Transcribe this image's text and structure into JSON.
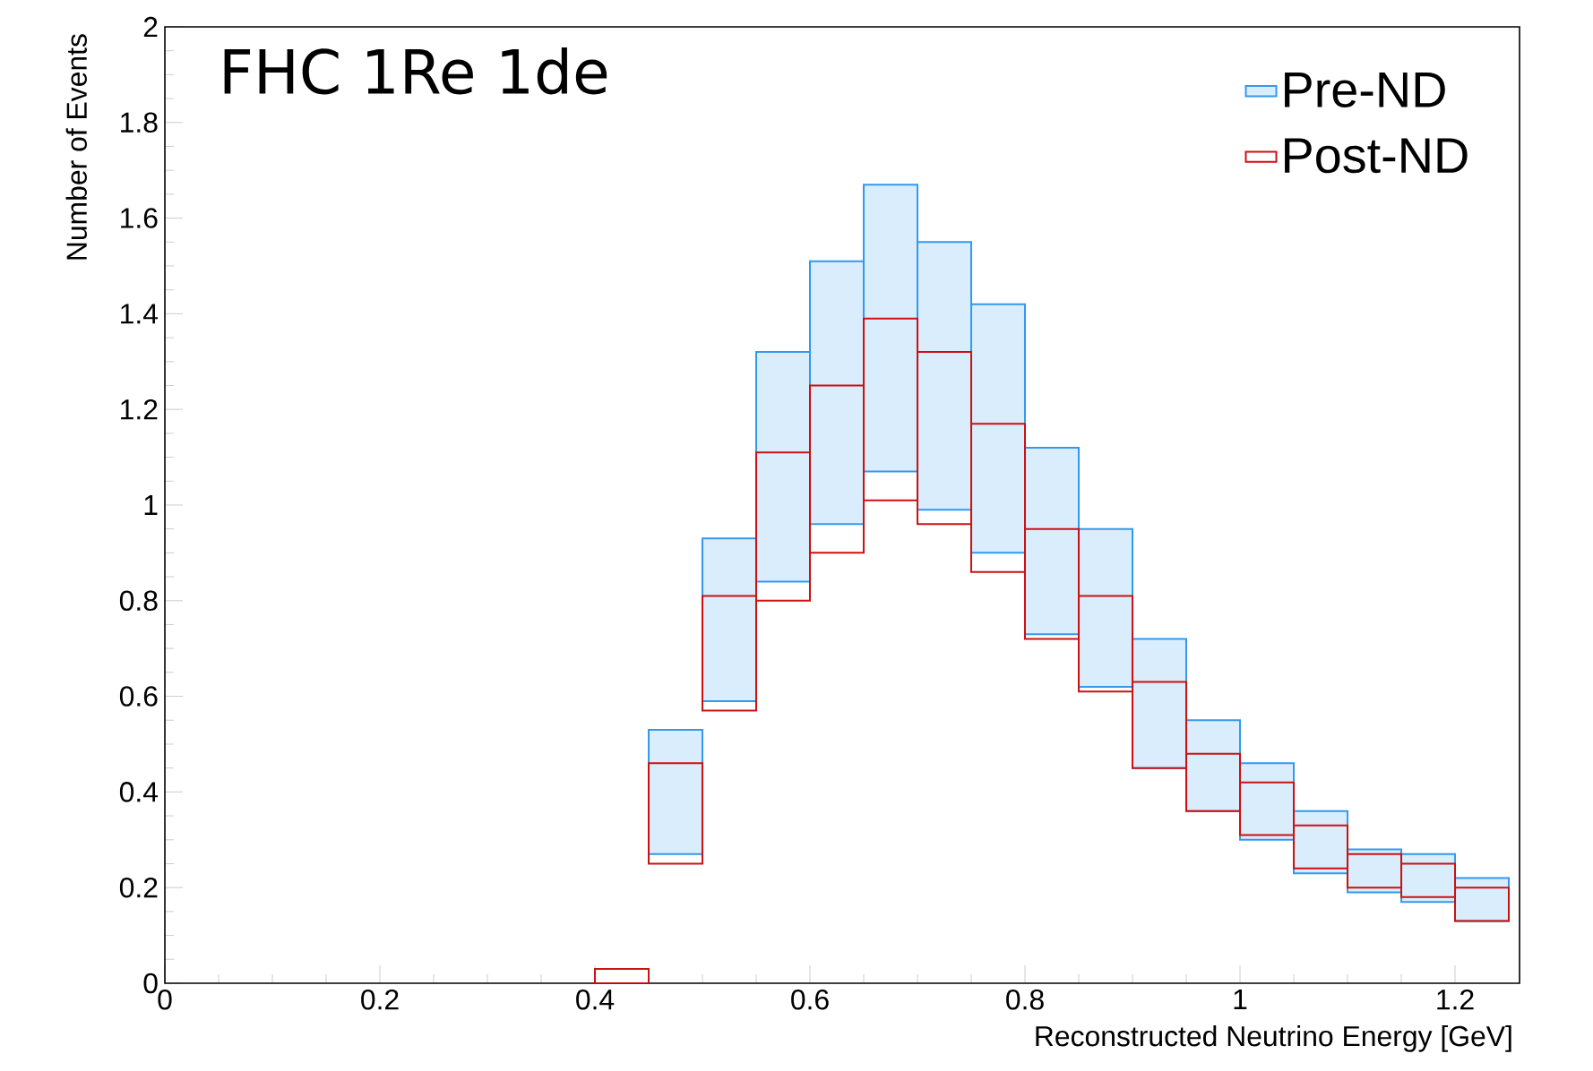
{
  "chart_data": {
    "type": "bar",
    "title": "FHC 1Re 1de",
    "xlabel": "Reconstructed Neutrino Energy [GeV]",
    "ylabel": "Number of Events",
    "x": [
      0.425,
      0.475,
      0.525,
      0.575,
      0.625,
      0.675,
      0.725,
      0.775,
      0.825,
      0.875,
      0.925,
      0.975,
      1.025,
      1.075,
      1.125,
      1.175,
      1.225
    ],
    "series": [
      {
        "name": "Pre-ND",
        "color": "#3399ee",
        "base": [
          null,
          0.27,
          0.59,
          0.84,
          0.96,
          1.07,
          0.99,
          0.9,
          0.73,
          0.62,
          0.45,
          0.36,
          0.3,
          0.23,
          0.19,
          0.17,
          0.13
        ],
        "values": [
          null,
          0.26,
          0.34,
          0.48,
          0.55,
          0.6,
          0.56,
          0.52,
          0.39,
          0.33,
          0.27,
          0.19,
          0.16,
          0.13,
          0.09,
          0.1,
          0.09
        ]
      },
      {
        "name": "Post-ND",
        "color": "#cc1111",
        "base": [
          0.0,
          0.25,
          0.57,
          0.8,
          0.9,
          1.01,
          0.96,
          0.86,
          0.72,
          0.61,
          0.45,
          0.36,
          0.31,
          0.24,
          0.2,
          0.18,
          0.13
        ],
        "values": [
          0.03,
          0.21,
          0.24,
          0.31,
          0.35,
          0.38,
          0.36,
          0.31,
          0.23,
          0.2,
          0.18,
          0.12,
          0.11,
          0.09,
          0.07,
          0.07,
          0.07
        ]
      }
    ],
    "xlim": [
      0,
      1.26
    ],
    "xticks": [
      0,
      0.2,
      0.4,
      0.6,
      0.8,
      1,
      1.2
    ],
    "ylim": [
      0,
      2
    ],
    "yticks": [
      0,
      0.2,
      0.4,
      0.6,
      0.8,
      1,
      1.2,
      1.4,
      1.6,
      1.8,
      2
    ],
    "legend": "top right"
  }
}
